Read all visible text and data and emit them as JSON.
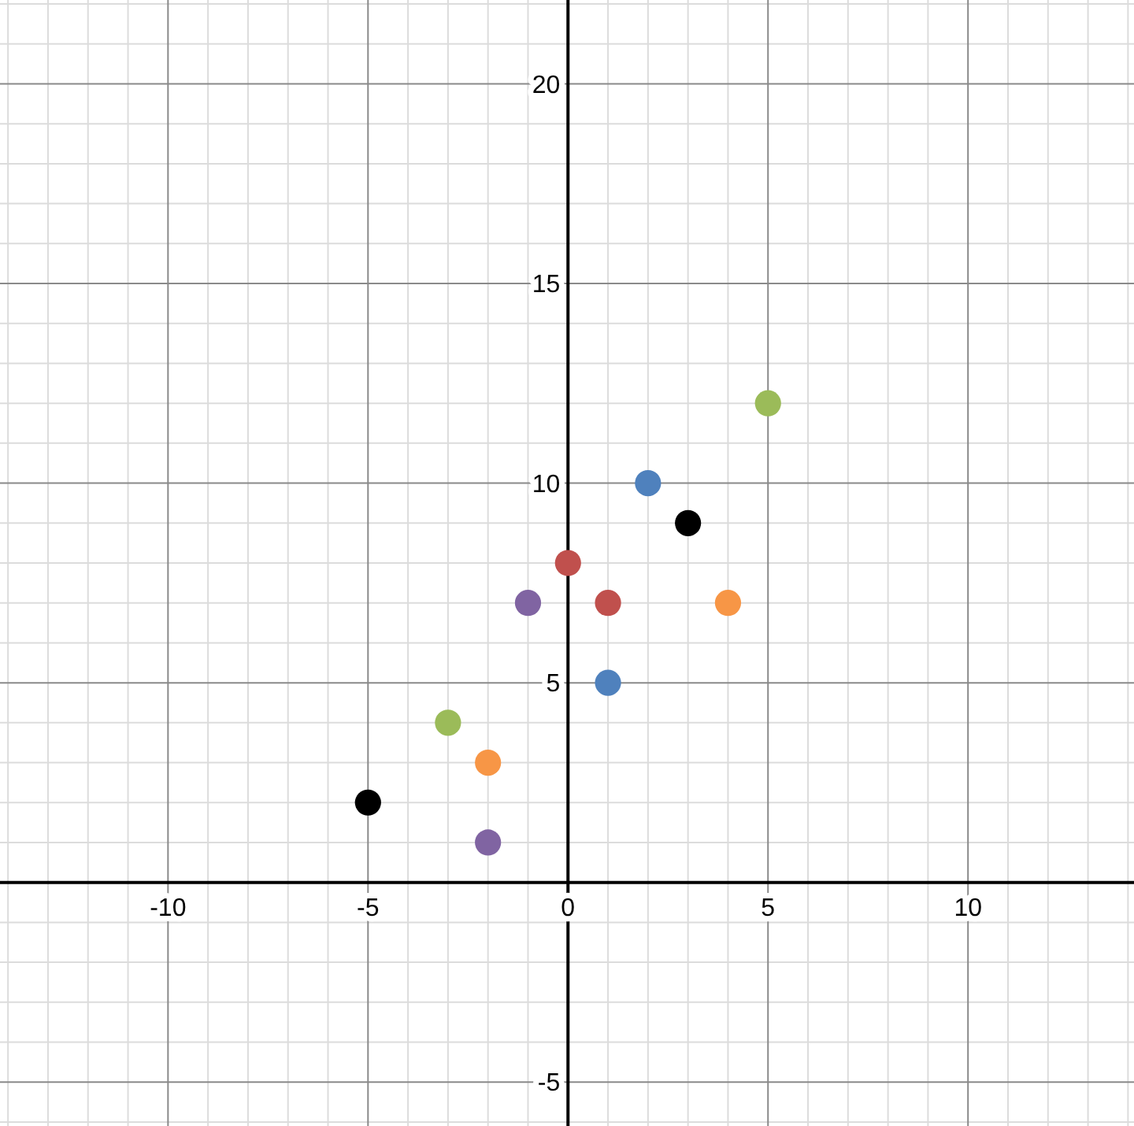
{
  "chart_data": {
    "type": "scatter",
    "xlim": [
      -14.2,
      14.15
    ],
    "ylim": [
      -6.1,
      22.1
    ],
    "grid": true,
    "marker": "circle",
    "xticks": [
      {
        "value": -14,
        "label": null
      },
      {
        "value": -13,
        "label": null
      },
      {
        "value": -12,
        "label": null
      },
      {
        "value": -11,
        "label": null
      },
      -10,
      {
        "value": -9,
        "label": null
      },
      {
        "value": -8,
        "label": null
      },
      {
        "value": -7,
        "label": null
      },
      {
        "value": -6,
        "label": null
      },
      -5,
      {
        "value": -4,
        "label": null
      },
      {
        "value": -3,
        "label": null
      },
      {
        "value": -2,
        "label": null
      },
      {
        "value": -1,
        "label": null
      },
      0,
      {
        "value": 1,
        "label": null
      },
      {
        "value": 2,
        "label": null
      },
      {
        "value": 3,
        "label": null
      },
      {
        "value": 4,
        "label": null
      },
      5,
      {
        "value": 6,
        "label": null
      },
      {
        "value": 7,
        "label": null
      },
      {
        "value": 8,
        "label": null
      },
      {
        "value": 9,
        "label": null
      },
      10,
      {
        "value": 11,
        "label": null
      },
      {
        "value": 12,
        "label": null
      },
      {
        "value": 13,
        "label": null
      },
      {
        "value": 14,
        "label": null
      }
    ],
    "yticks": [
      {
        "value": -6,
        "label": null
      },
      -5,
      {
        "value": -4,
        "label": null
      },
      {
        "value": -3,
        "label": null
      },
      {
        "value": -2,
        "label": null
      },
      {
        "value": -1,
        "label": null
      },
      {
        "value": 0,
        "label": null
      },
      {
        "value": 1,
        "label": null
      },
      {
        "value": 2,
        "label": null
      },
      {
        "value": 3,
        "label": null
      },
      {
        "value": 4,
        "label": null
      },
      5,
      {
        "value": 6,
        "label": null
      },
      {
        "value": 7,
        "label": null
      },
      {
        "value": 8,
        "label": null
      },
      {
        "value": 9,
        "label": null
      },
      10,
      {
        "value": 11,
        "label": null
      },
      {
        "value": 12,
        "label": null
      },
      {
        "value": 13,
        "label": null
      },
      {
        "value": 14,
        "label": null
      },
      15,
      {
        "value": 16,
        "label": null
      },
      {
        "value": 17,
        "label": null
      },
      {
        "value": 18,
        "label": null
      },
      {
        "value": 19,
        "label": null
      },
      20,
      {
        "value": 21,
        "label": null
      },
      {
        "value": 22,
        "label": null
      }
    ],
    "series": [
      {
        "color": "#000000",
        "x": [
          -5,
          3
        ],
        "values": [
          2,
          9
        ]
      },
      {
        "color": "#9bbb59",
        "x": [
          -3,
          5
        ],
        "values": [
          4,
          12
        ]
      },
      {
        "color": "#f79646",
        "x": [
          -2,
          4
        ],
        "values": [
          3,
          7
        ]
      },
      {
        "color": "#8064a2",
        "x": [
          -2,
          -1
        ],
        "values": [
          1,
          7
        ]
      },
      {
        "color": "#c0504d",
        "x": [
          0,
          1
        ],
        "values": [
          8,
          7
        ]
      },
      {
        "color": "#4f81bd",
        "x": [
          1,
          2
        ],
        "values": [
          5,
          10
        ]
      }
    ]
  }
}
